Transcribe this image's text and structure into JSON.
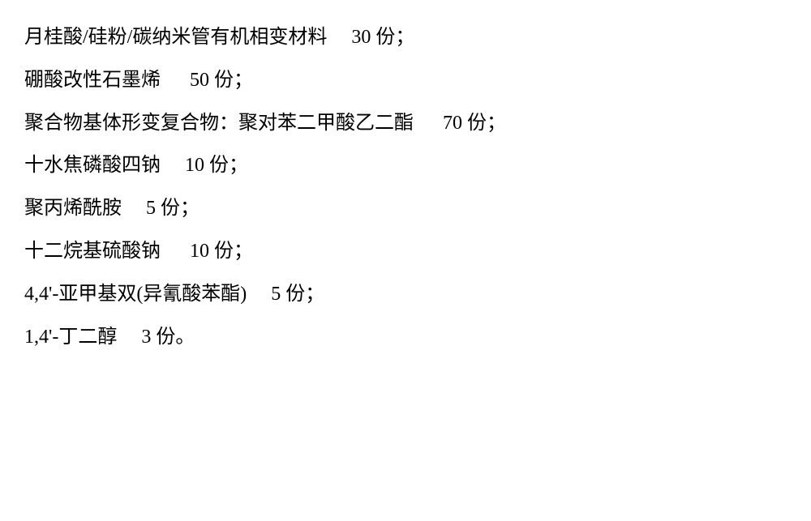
{
  "lines": [
    "月桂酸/硅粉/碳纳米管有机相变材料     30 份；",
    "硼酸改性石墨烯      50 份；",
    "聚合物基体形变复合物：聚对苯二甲酸乙二酯      70 份；",
    "十水焦磷酸四钠     10 份；",
    "聚丙烯酰胺     5 份；",
    "十二烷基硫酸钠      10 份；",
    "4,4'-亚甲基双(异氰酸苯酯)     5 份；",
    "1,4'-丁二醇     3 份。"
  ]
}
